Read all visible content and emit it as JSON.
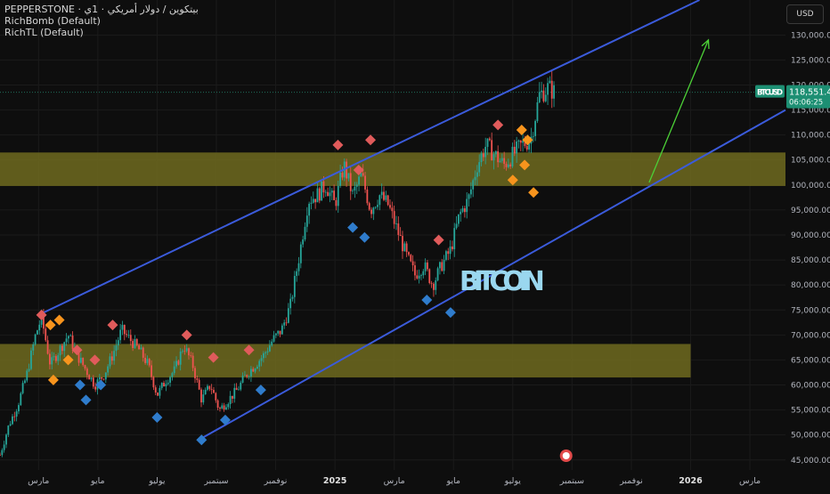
{
  "legend": {
    "line1": "PEPPERSTONE · بيتكوين / دولار أمريكي · 1ي",
    "line2": "RichBomb (Default)",
    "line3": "RichTL (Default)"
  },
  "currency": "USD",
  "chart_data": {
    "type": "candlestick",
    "symbol": "BTCUSD",
    "last_price": "118,551.45",
    "countdown": "06:06:25",
    "annotation": "BITCOIN",
    "ylim": [
      43000,
      137000
    ],
    "y_ticks": [
      45000,
      50000,
      55000,
      60000,
      65000,
      70000,
      75000,
      80000,
      85000,
      90000,
      95000,
      100000,
      105000,
      110000,
      115000,
      120000,
      125000,
      130000
    ],
    "y_tick_labels": [
      "45,000.00",
      "50,000.00",
      "55,000.00",
      "60,000.00",
      "65,000.00",
      "70,000.00",
      "75,000.00",
      "80,000.00",
      "85,000.00",
      "90,000.00",
      "95,000.00",
      "100,000.00",
      "105,000.00",
      "110,000.00",
      "115,000.00",
      "120,000.00",
      "125,000.00",
      "130,000.00"
    ],
    "x_labels": [
      "مارس",
      "مايو",
      "يوليو",
      "سبتمبر",
      "نوفمبر",
      "2025",
      "مارس",
      "مايو",
      "يوليو",
      "سبتمبر",
      "نوفمبر",
      "2026",
      "مارس"
    ],
    "x_label_bold": [
      false,
      false,
      false,
      false,
      false,
      true,
      false,
      false,
      false,
      false,
      false,
      true,
      false
    ],
    "x_label_months": [
      2,
      4,
      6,
      8,
      10,
      12,
      14,
      16,
      18,
      20,
      22,
      24,
      26
    ],
    "x_range_months": [
      0.7,
      27.2
    ],
    "zones": [
      {
        "y_low": 99800,
        "y_high": 106500,
        "x_start": 0.7,
        "x_end": 27.2,
        "color": "#6e6a1e"
      },
      {
        "y_low": 61500,
        "y_high": 68200,
        "x_start": 0.7,
        "x_end": 24.0,
        "color": "#6e6a1e"
      }
    ],
    "channel": {
      "upper": {
        "from": [
          2.0,
          74000
        ],
        "to": [
          24.3,
          137000
        ]
      },
      "lower": {
        "from": [
          7.4,
          49000
        ],
        "to": [
          27.2,
          115000
        ]
      },
      "color": "#3b5bdb"
    },
    "arrow": {
      "from": [
        22.6,
        100500
      ],
      "to": [
        24.6,
        129000
      ],
      "color": "#4cd137"
    },
    "price_path": [
      [
        0.7,
        46000
      ],
      [
        1.0,
        52000
      ],
      [
        1.3,
        56000
      ],
      [
        1.6,
        62000
      ],
      [
        1.9,
        70000
      ],
      [
        2.1,
        73500
      ],
      [
        2.4,
        64000
      ],
      [
        2.7,
        67000
      ],
      [
        3.0,
        70000
      ],
      [
        3.3,
        66000
      ],
      [
        3.6,
        63000
      ],
      [
        3.9,
        60000
      ],
      [
        4.2,
        62000
      ],
      [
        4.5,
        66000
      ],
      [
        4.8,
        71000
      ],
      [
        5.1,
        69000
      ],
      [
        5.4,
        67000
      ],
      [
        5.7,
        64000
      ],
      [
        6.0,
        58000
      ],
      [
        6.3,
        61000
      ],
      [
        6.6,
        63000
      ],
      [
        6.9,
        68000
      ],
      [
        7.2,
        64000
      ],
      [
        7.5,
        57000
      ],
      [
        7.8,
        60000
      ],
      [
        8.1,
        55000
      ],
      [
        8.4,
        57000
      ],
      [
        8.7,
        59000
      ],
      [
        9.0,
        62000
      ],
      [
        9.3,
        64000
      ],
      [
        9.6,
        66000
      ],
      [
        9.9,
        69000
      ],
      [
        10.2,
        71000
      ],
      [
        10.5,
        76000
      ],
      [
        10.8,
        86000
      ],
      [
        11.1,
        97000
      ],
      [
        11.4,
        98000
      ],
      [
        11.7,
        100000
      ],
      [
        12.0,
        96000
      ],
      [
        12.3,
        104000
      ],
      [
        12.6,
        98000
      ],
      [
        12.9,
        102000
      ],
      [
        13.2,
        95000
      ],
      [
        13.5,
        98000
      ],
      [
        13.8,
        96000
      ],
      [
        14.1,
        91000
      ],
      [
        14.4,
        86000
      ],
      [
        14.7,
        82000
      ],
      [
        15.0,
        84000
      ],
      [
        15.3,
        80000
      ],
      [
        15.6,
        84000
      ],
      [
        15.9,
        87000
      ],
      [
        16.2,
        94000
      ],
      [
        16.5,
        97000
      ],
      [
        16.8,
        104000
      ],
      [
        17.1,
        108000
      ],
      [
        17.4,
        106000
      ],
      [
        17.7,
        104000
      ],
      [
        18.0,
        106000
      ],
      [
        18.3,
        108000
      ],
      [
        18.6,
        109000
      ],
      [
        18.9,
        118000
      ],
      [
        19.2,
        119500
      ],
      [
        19.4,
        118551
      ]
    ],
    "markers": [
      {
        "month": 2.1,
        "price": 74000,
        "color": "#e05b5b"
      },
      {
        "month": 2.4,
        "price": 72000,
        "color": "#f7941d"
      },
      {
        "month": 2.7,
        "price": 73000,
        "color": "#f7941d"
      },
      {
        "month": 2.5,
        "price": 61000,
        "color": "#f7941d"
      },
      {
        "month": 3.0,
        "price": 65000,
        "color": "#f7941d"
      },
      {
        "month": 3.3,
        "price": 67000,
        "color": "#e05b5b"
      },
      {
        "month": 3.4,
        "price": 60000,
        "color": "#2f7ccc"
      },
      {
        "month": 3.6,
        "price": 57000,
        "color": "#2f7ccc"
      },
      {
        "month": 3.9,
        "price": 65000,
        "color": "#e05b5b"
      },
      {
        "month": 4.1,
        "price": 60000,
        "color": "#2f7ccc"
      },
      {
        "month": 4.5,
        "price": 72000,
        "color": "#e05b5b"
      },
      {
        "month": 6.0,
        "price": 53500,
        "color": "#2f7ccc"
      },
      {
        "month": 7.0,
        "price": 70000,
        "color": "#e05b5b"
      },
      {
        "month": 7.5,
        "price": 49000,
        "color": "#2f7ccc"
      },
      {
        "month": 7.9,
        "price": 65500,
        "color": "#e05b5b"
      },
      {
        "month": 8.3,
        "price": 53000,
        "color": "#2f7ccc"
      },
      {
        "month": 9.1,
        "price": 67000,
        "color": "#e05b5b"
      },
      {
        "month": 9.5,
        "price": 59000,
        "color": "#2f7ccc"
      },
      {
        "month": 12.1,
        "price": 108000,
        "color": "#e05b5b"
      },
      {
        "month": 12.6,
        "price": 91500,
        "color": "#2f7ccc"
      },
      {
        "month": 12.8,
        "price": 103000,
        "color": "#e05b5b"
      },
      {
        "month": 13.0,
        "price": 89500,
        "color": "#2f7ccc"
      },
      {
        "month": 13.2,
        "price": 109000,
        "color": "#e05b5b"
      },
      {
        "month": 15.1,
        "price": 77000,
        "color": "#2f7ccc"
      },
      {
        "month": 15.5,
        "price": 89000,
        "color": "#e05b5b"
      },
      {
        "month": 15.9,
        "price": 74500,
        "color": "#2f7ccc"
      },
      {
        "month": 17.5,
        "price": 112000,
        "color": "#e05b5b"
      },
      {
        "month": 18.0,
        "price": 101000,
        "color": "#f7941d"
      },
      {
        "month": 18.3,
        "price": 111000,
        "color": "#f7941d"
      },
      {
        "month": 18.5,
        "price": 109000,
        "color": "#f7941d"
      },
      {
        "month": 18.4,
        "price": 104000,
        "color": "#f7941d"
      },
      {
        "month": 18.7,
        "price": 98500,
        "color": "#f7941d"
      }
    ]
  }
}
